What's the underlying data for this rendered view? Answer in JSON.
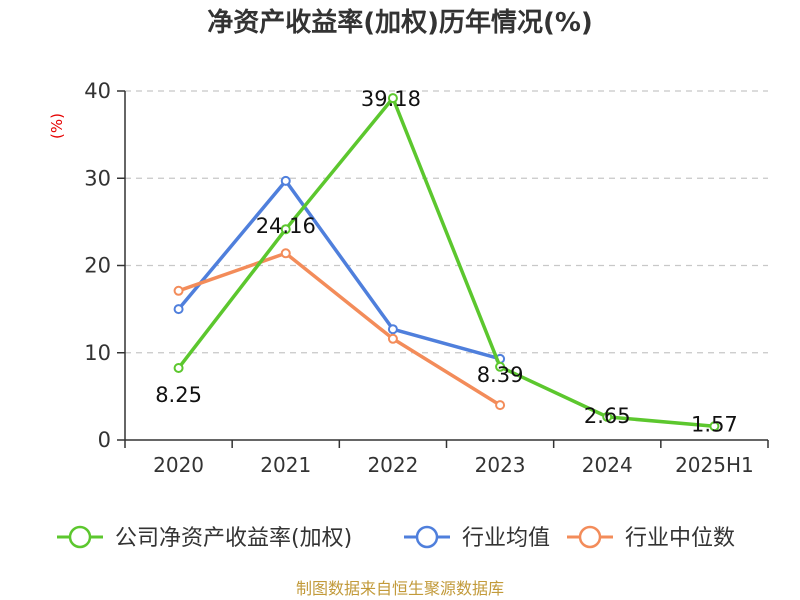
{
  "chart_data": {
    "type": "line",
    "title": "净资产收益率(加权)历年情况(%)",
    "ylabel": "(%)",
    "categories": [
      "2020",
      "2021",
      "2022",
      "2023",
      "2024",
      "2025H1"
    ],
    "ylim": [
      0,
      40
    ],
    "yticks": [
      0,
      10,
      20,
      30,
      40
    ],
    "grid": true,
    "legend_position": "bottom",
    "series": [
      {
        "name": "公司净资产收益率(加权)",
        "color": "#5cc72e",
        "values": [
          8.25,
          24.16,
          39.18,
          8.39,
          2.65,
          1.57
        ],
        "labels": [
          "8.25",
          "24.16",
          "39.18",
          "8.39",
          "2.65",
          "1.57"
        ]
      },
      {
        "name": "行业均值",
        "color": "#4f7fdc",
        "values": [
          15.0,
          29.7,
          12.7,
          9.3,
          null,
          null
        ]
      },
      {
        "name": "行业中位数",
        "color": "#f38c5a",
        "values": [
          17.1,
          21.4,
          11.6,
          4.0,
          null,
          null
        ]
      }
    ]
  },
  "source": "制图数据来自恒生聚源数据库"
}
